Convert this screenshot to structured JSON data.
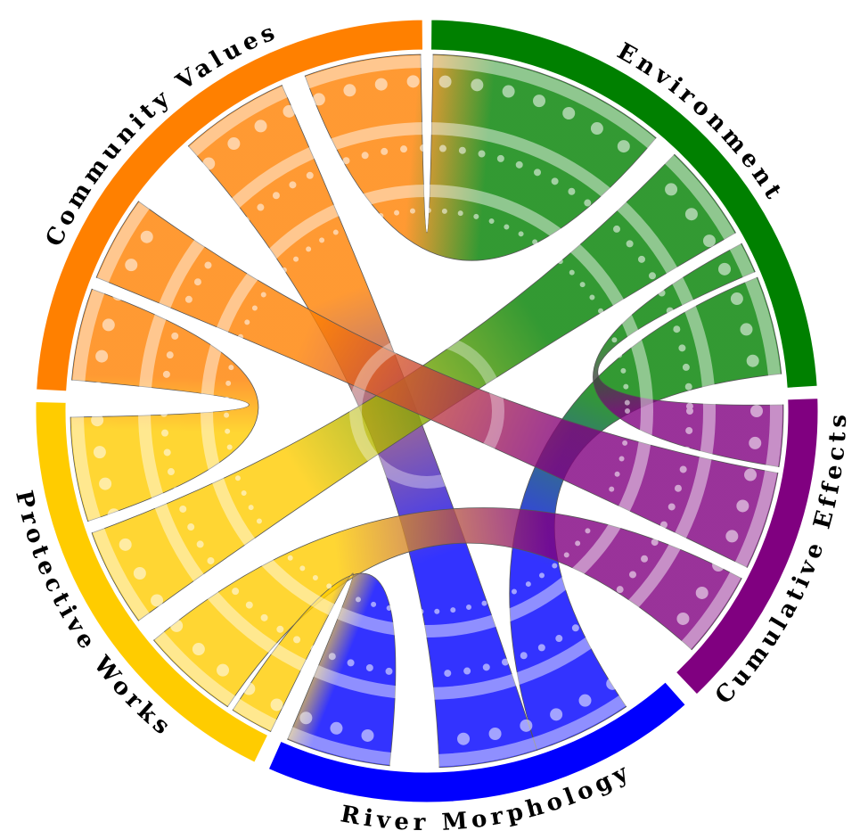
{
  "nodes": [
    {
      "label": "Environment",
      "color": "#008000"
    },
    {
      "label": "Cumulative Effects",
      "color": "#800080"
    },
    {
      "label": "River Morphology",
      "color": "#0000ff"
    },
    {
      "label": "Protective Works",
      "color": "#ffcc00"
    },
    {
      "label": "Community Values",
      "color": "#ff8000"
    }
  ]
}
